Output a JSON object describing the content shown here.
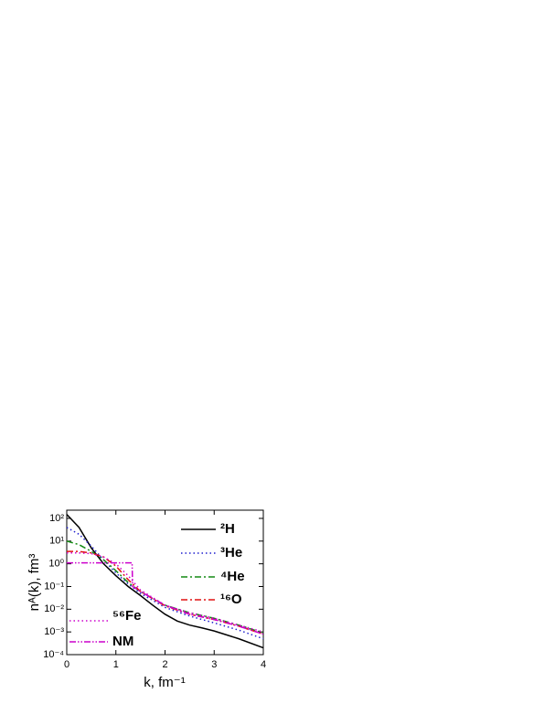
{
  "chart_data": {
    "type": "line",
    "xlabel": "k, fm⁻¹",
    "ylabel": "nᴬ(k), fm³",
    "xlim": [
      0,
      4
    ],
    "xticks": [
      0,
      1,
      2,
      3,
      4
    ],
    "ylim": [
      0.0001,
      230
    ],
    "yscale": "log",
    "yticks": [
      {
        "value": 0.0001,
        "label": "10⁻⁴"
      },
      {
        "value": 0.001,
        "label": "10⁻³"
      },
      {
        "value": 0.01,
        "label": "10⁻²"
      },
      {
        "value": 0.1,
        "label": "10⁻¹"
      },
      {
        "value": 1,
        "label": "10⁰"
      },
      {
        "value": 10,
        "label": "10¹"
      },
      {
        "value": 100,
        "label": "10²"
      }
    ],
    "series": [
      {
        "name": "²H",
        "color": "#000000",
        "style": "solid",
        "x": [
          0,
          0.25,
          0.5,
          0.75,
          1,
          1.25,
          1.5,
          1.75,
          2,
          2.25,
          2.5,
          2.75,
          3,
          3.5,
          4
        ],
        "values": [
          150,
          40,
          5,
          1,
          0.3,
          0.1,
          0.04,
          0.015,
          0.006,
          0.003,
          0.002,
          0.0015,
          0.0011,
          0.0005,
          0.0002
        ]
      },
      {
        "name": "³He",
        "color": "#1f1fcf",
        "style": "dotted",
        "x": [
          0,
          0.25,
          0.5,
          0.75,
          1,
          1.25,
          1.5,
          2,
          2.5,
          3,
          3.5,
          4
        ],
        "values": [
          40,
          20,
          6,
          1.5,
          0.4,
          0.13,
          0.05,
          0.012,
          0.005,
          0.0025,
          0.0012,
          0.0005
        ]
      },
      {
        "name": "⁴He",
        "color": "#138a13",
        "style": "dashdot",
        "x": [
          0,
          0.25,
          0.5,
          0.75,
          1,
          1.25,
          1.5,
          2,
          2.5,
          3,
          3.5,
          4
        ],
        "values": [
          10,
          7,
          3.5,
          1.5,
          0.5,
          0.15,
          0.06,
          0.015,
          0.007,
          0.004,
          0.002,
          0.0009
        ]
      },
      {
        "name": "¹⁶O",
        "color": "#e01010",
        "style": "dashdot",
        "x": [
          0,
          0.25,
          0.5,
          0.75,
          1,
          1.25,
          1.5,
          2,
          2.5,
          3,
          3.5,
          4
        ],
        "values": [
          3.5,
          3.5,
          3,
          2,
          0.8,
          0.2,
          0.06,
          0.014,
          0.006,
          0.0035,
          0.0018,
          0.0008
        ]
      },
      {
        "name": "⁵⁶Fe",
        "color": "#cc00cc",
        "style": "dotted",
        "x": [
          0,
          0.25,
          0.5,
          0.75,
          1,
          1.25,
          1.5,
          2,
          2.5,
          3,
          3.5,
          4
        ],
        "values": [
          3,
          3,
          2.8,
          2,
          1,
          0.3,
          0.07,
          0.015,
          0.007,
          0.004,
          0.002,
          0.001
        ]
      },
      {
        "name": "NM",
        "color": "#cc00cc",
        "style": "dashdotdot",
        "x": [
          0,
          1.33,
          1.34,
          1.5,
          2,
          2.5,
          3,
          3.5,
          4
        ],
        "values": [
          1.1,
          1.1,
          0.1,
          0.06,
          0.015,
          0.006,
          0.0035,
          0.0018,
          0.0008
        ]
      }
    ]
  }
}
